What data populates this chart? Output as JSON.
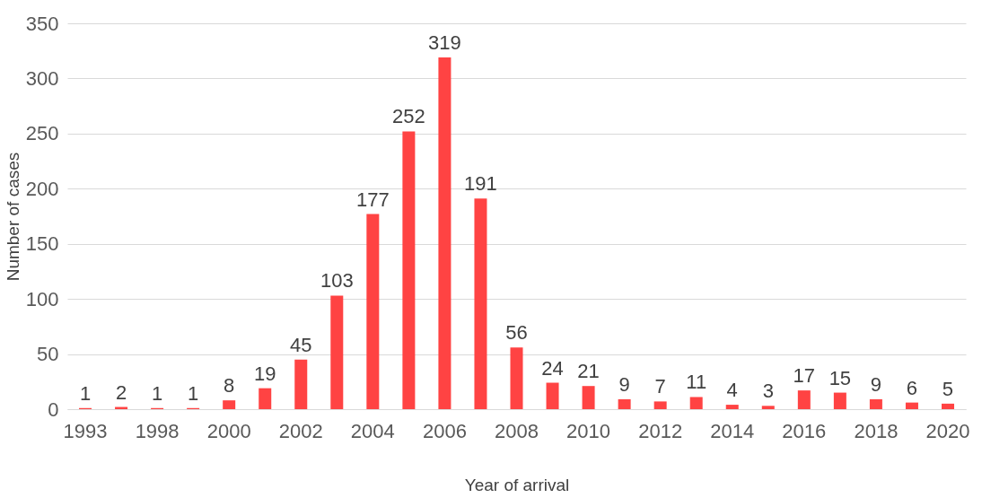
{
  "chart_data": {
    "type": "bar",
    "xlabel": "Year of arrival",
    "ylabel": "Number of cases",
    "categories": [
      "1993",
      null,
      "1998",
      null,
      "2000",
      null,
      "2002",
      null,
      "2004",
      null,
      "2006",
      null,
      "2008",
      null,
      "2010",
      null,
      "2012",
      null,
      "2014",
      null,
      "2016",
      null,
      "2018",
      null,
      "2020"
    ],
    "values": [
      1,
      2,
      1,
      1,
      8,
      19,
      45,
      103,
      177,
      252,
      319,
      191,
      56,
      24,
      21,
      9,
      7,
      11,
      4,
      3,
      17,
      15,
      9,
      6,
      5
    ],
    "color": "#ff4343",
    "ylim": [
      0,
      350
    ],
    "yticks": [
      0,
      50,
      100,
      150,
      200,
      250,
      300,
      350
    ],
    "grid": "y",
    "data_labels": true
  }
}
